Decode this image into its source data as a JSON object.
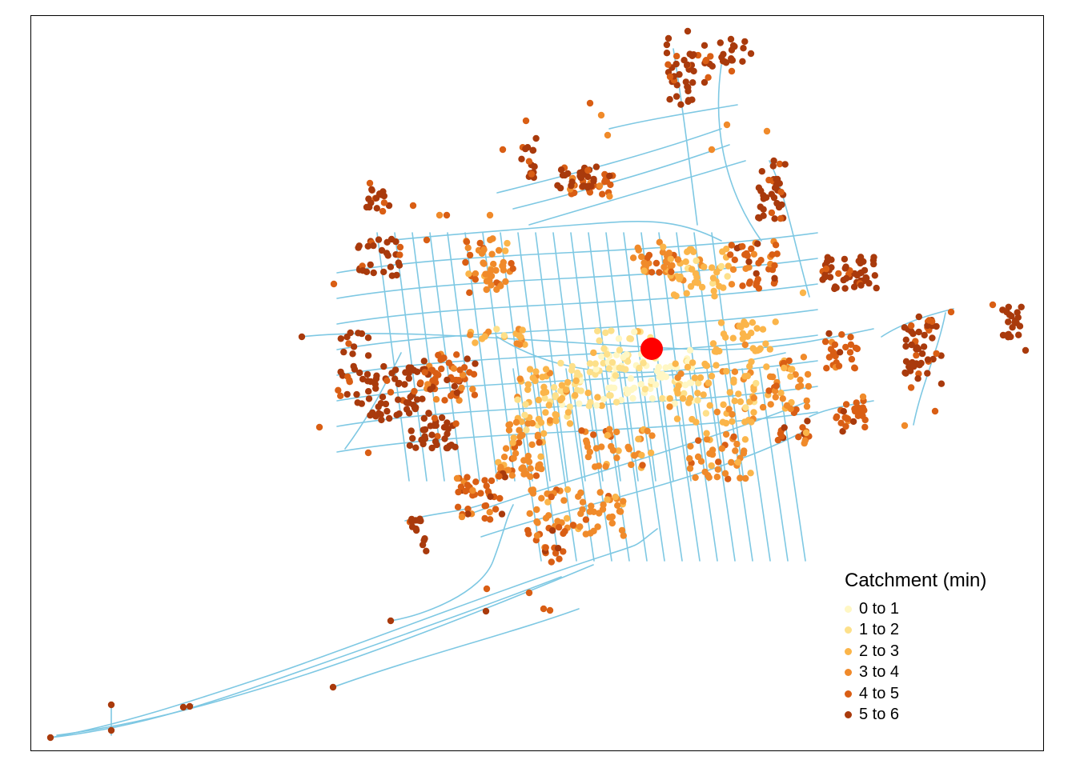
{
  "map": {
    "type": "catchment-network-map",
    "network_color": "#7ec8e3",
    "origin_color": "#ff0000",
    "colors": [
      "#fff7c4",
      "#fde08a",
      "#fbb54a",
      "#f08a2a",
      "#d95e14",
      "#a93a0c"
    ]
  },
  "legend": {
    "title": "Catchment (min)",
    "items": [
      {
        "label": "0 to 1",
        "color": "#fff7c4"
      },
      {
        "label": "1 to 2",
        "color": "#fde08a"
      },
      {
        "label": "2 to 3",
        "color": "#fbb54a"
      },
      {
        "label": "3 to 4",
        "color": "#f08a2a"
      },
      {
        "label": "4 to 5",
        "color": "#d95e14"
      },
      {
        "label": "5 to 6",
        "color": "#a93a0c"
      }
    ]
  }
}
